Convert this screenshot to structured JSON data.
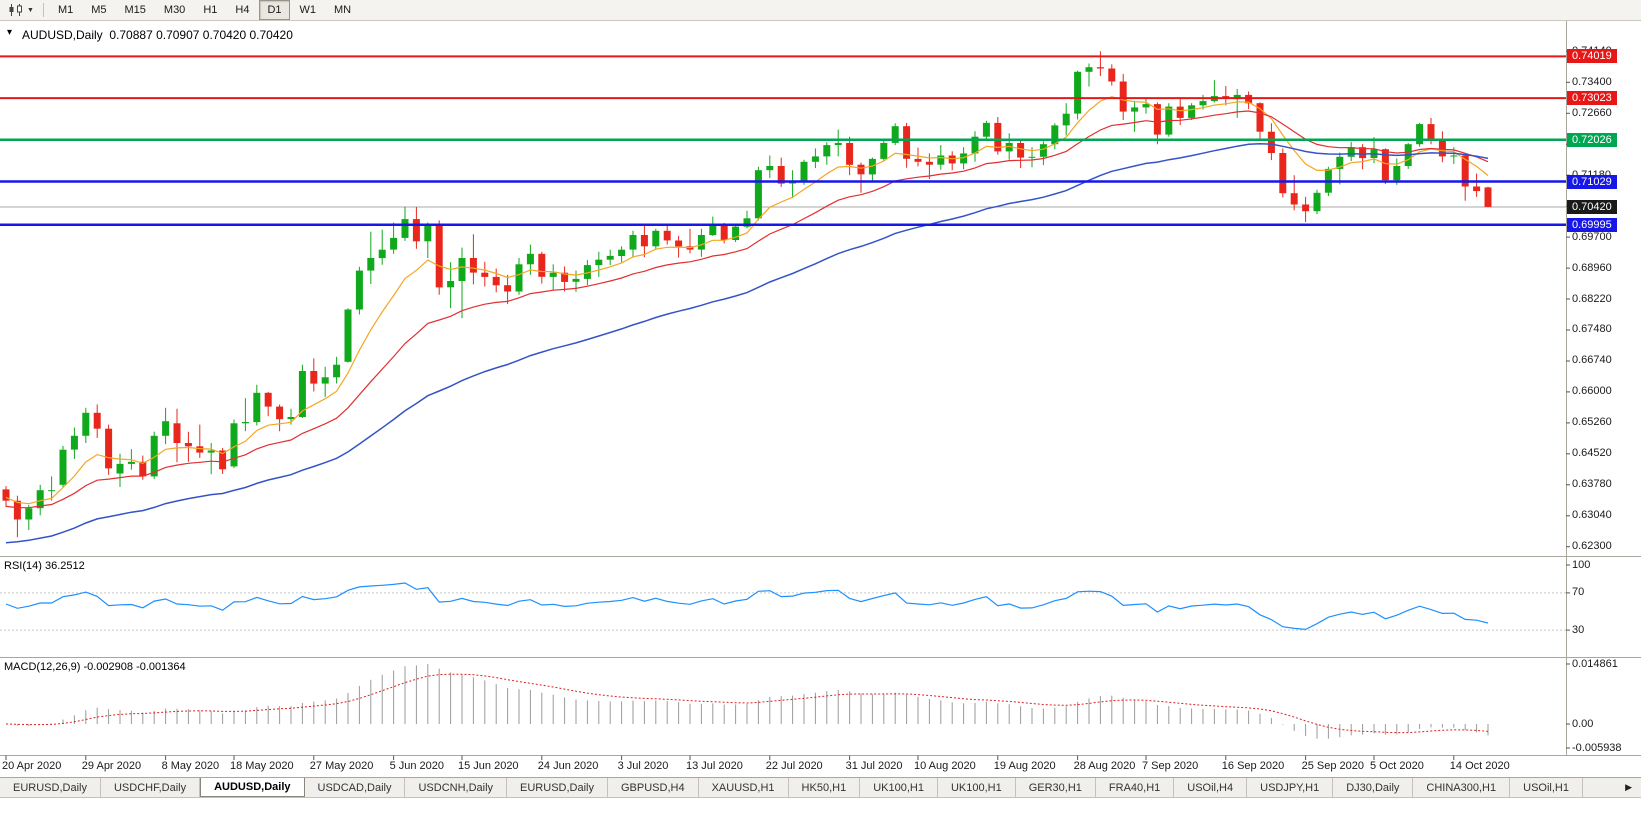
{
  "icons": {
    "caret_down": "▼",
    "one_click": "▾",
    "tab_scroll_right": "▶"
  },
  "toolbar": {
    "timeframes": [
      "M1",
      "M5",
      "M15",
      "M30",
      "H1",
      "H4",
      "D1",
      "W1",
      "MN"
    ],
    "active_timeframe": "D1"
  },
  "panes": {
    "main_title": "AUDUSD,Daily",
    "main_ohlc": "0.70887 0.70907 0.70420 0.70420",
    "rsi_label": "RSI(14) 36.2512",
    "macd_label": "MACD(12,26,9) -0.002908 -0.001364"
  },
  "chart": {
    "symbol": "AUDUSD",
    "period": "Daily",
    "open": "0.70887",
    "high": "0.70907",
    "low": "0.70420",
    "close": "0.70420",
    "current_price": "0.70420"
  },
  "tabs": {
    "active_index": 2,
    "items": [
      "EURUSD,Daily",
      "USDCHF,Daily",
      "AUDUSD,Daily",
      "USDCAD,Daily",
      "USDCNH,Daily",
      "EURUSD,Daily",
      "GBPUSD,H4",
      "XAUUSD,H1",
      "HK50,H1",
      "UK100,H1",
      "UK100,H1",
      "GER30,H1",
      "FRA40,H1",
      "USOil,H4",
      "USDJPY,H1",
      "DJ30,Daily",
      "CHINA300,H1",
      "USOil,H1"
    ]
  },
  "chart_data": {
    "type": "candlestick",
    "symbol": "AUDUSD",
    "timeframe": "Daily",
    "last_bar": {
      "open": 0.70887,
      "high": 0.70907,
      "low": 0.7042,
      "close": 0.7042
    },
    "bid_price": 0.7042,
    "y_axis": {
      "min": 0.6215,
      "max": 0.7465,
      "ticks": [
        "0.74140",
        "0.73400",
        "0.72660",
        "0.71920",
        "0.71180",
        "0.70440",
        "0.69700",
        "0.68960",
        "0.68220",
        "0.67480",
        "0.66740",
        "0.66000",
        "0.65260",
        "0.64520",
        "0.63780",
        "0.63040",
        "0.62300"
      ]
    },
    "x_labels": [
      {
        "index": 0,
        "label": "20 Apr 2020"
      },
      {
        "index": 7,
        "label": "29 Apr 2020"
      },
      {
        "index": 14,
        "label": "8 May 2020"
      },
      {
        "index": 20,
        "label": "18 May 2020"
      },
      {
        "index": 27,
        "label": "27 May 2020"
      },
      {
        "index": 34,
        "label": "5 Jun 2020"
      },
      {
        "index": 40,
        "label": "15 Jun 2020"
      },
      {
        "index": 47,
        "label": "24 Jun 2020"
      },
      {
        "index": 54,
        "label": "3 Jul 2020"
      },
      {
        "index": 60,
        "label": "13 Jul 2020"
      },
      {
        "index": 67,
        "label": "22 Jul 2020"
      },
      {
        "index": 74,
        "label": "31 Jul 2020"
      },
      {
        "index": 80,
        "label": "10 Aug 2020"
      },
      {
        "index": 87,
        "label": "19 Aug 2020"
      },
      {
        "index": 94,
        "label": "28 Aug 2020"
      },
      {
        "index": 100,
        "label": "7 Sep 2020"
      },
      {
        "index": 107,
        "label": "16 Sep 2020"
      },
      {
        "index": 114,
        "label": "25 Sep 2020"
      },
      {
        "index": 120,
        "label": "5 Oct 2020"
      },
      {
        "index": 127,
        "label": "14 Oct 2020"
      }
    ],
    "colors": {
      "candle_up": "#10a91c",
      "candle_down": "#e8261c",
      "bid_line": "#a8a8a8",
      "current_tag": "#1a1a1a",
      "divider": "#aaa69e",
      "axis_line": "#aaa69e",
      "tick": "#555555",
      "level_line": "#c8c8c8"
    },
    "overlays": [
      {
        "name": "ma-fast-line",
        "type": "ema",
        "period": 8,
        "seed": 0.635,
        "color": "#f5a623",
        "width": 1.2
      },
      {
        "name": "ma-medium-line",
        "type": "ema",
        "period": 20,
        "seed": 0.6325,
        "color": "#e03030",
        "width": 1.2
      },
      {
        "name": "ma-slow-line",
        "type": "ema",
        "period": 45,
        "seed": 0.6235,
        "color": "#3453c8",
        "width": 1.5
      }
    ],
    "hlines": [
      {
        "label": "0.74019",
        "price": 0.74019,
        "color": "#e81717",
        "width": 2
      },
      {
        "label": "0.73023",
        "price": 0.73023,
        "color": "#e81717",
        "width": 2
      },
      {
        "label": "0.72026",
        "price": 0.72026,
        "color": "#00a651",
        "width": 2.5
      },
      {
        "label": "0.71029",
        "price": 0.71029,
        "color": "#1717e8",
        "width": 2.5
      },
      {
        "label": "0.69995",
        "price": 0.69995,
        "color": "#1717e8",
        "width": 2.5
      }
    ],
    "candles": [
      [
        0.6367,
        0.6375,
        0.6325,
        0.634
      ],
      [
        0.634,
        0.6352,
        0.6253,
        0.6295
      ],
      [
        0.6295,
        0.633,
        0.627,
        0.6322
      ],
      [
        0.6322,
        0.6378,
        0.6305,
        0.6365
      ],
      [
        0.6365,
        0.6398,
        0.634,
        0.6365
      ],
      [
        0.6378,
        0.6471,
        0.6372,
        0.6462
      ],
      [
        0.6462,
        0.6515,
        0.644,
        0.6495
      ],
      [
        0.6495,
        0.6562,
        0.6478,
        0.655
      ],
      [
        0.655,
        0.657,
        0.649,
        0.6512
      ],
      [
        0.6512,
        0.6522,
        0.6402,
        0.6417
      ],
      [
        0.6405,
        0.6452,
        0.6373,
        0.6428
      ],
      [
        0.6428,
        0.6463,
        0.6414,
        0.6433
      ],
      [
        0.6433,
        0.6448,
        0.639,
        0.6398
      ],
      [
        0.6398,
        0.6505,
        0.6392,
        0.6495
      ],
      [
        0.6495,
        0.6562,
        0.6475,
        0.653
      ],
      [
        0.6525,
        0.656,
        0.6432,
        0.6478
      ],
      [
        0.6478,
        0.6505,
        0.6433,
        0.647
      ],
      [
        0.647,
        0.6522,
        0.6442,
        0.6455
      ],
      [
        0.6455,
        0.6478,
        0.6403,
        0.646
      ],
      [
        0.646,
        0.6466,
        0.6404,
        0.6415
      ],
      [
        0.6422,
        0.6534,
        0.6418,
        0.6525
      ],
      [
        0.6525,
        0.6585,
        0.6506,
        0.6528
      ],
      [
        0.6528,
        0.6617,
        0.652,
        0.6598
      ],
      [
        0.6598,
        0.66,
        0.6542,
        0.6565
      ],
      [
        0.6565,
        0.657,
        0.6506,
        0.6535
      ],
      [
        0.6535,
        0.656,
        0.6522,
        0.654
      ],
      [
        0.654,
        0.6665,
        0.6538,
        0.665
      ],
      [
        0.665,
        0.668,
        0.6601,
        0.662
      ],
      [
        0.662,
        0.666,
        0.6588,
        0.6635
      ],
      [
        0.6635,
        0.6684,
        0.662,
        0.6665
      ],
      [
        0.6672,
        0.68,
        0.667,
        0.6797
      ],
      [
        0.6797,
        0.6899,
        0.6785,
        0.689
      ],
      [
        0.689,
        0.6983,
        0.6858,
        0.692
      ],
      [
        0.692,
        0.6988,
        0.6904,
        0.694
      ],
      [
        0.694,
        0.7005,
        0.693,
        0.6968
      ],
      [
        0.6968,
        0.7043,
        0.6961,
        0.7013
      ],
      [
        0.7013,
        0.7042,
        0.6942,
        0.696
      ],
      [
        0.696,
        0.7005,
        0.692,
        0.7
      ],
      [
        0.7,
        0.701,
        0.6832,
        0.685
      ],
      [
        0.685,
        0.691,
        0.68,
        0.6865
      ],
      [
        0.6865,
        0.6945,
        0.6776,
        0.692
      ],
      [
        0.692,
        0.6977,
        0.6857,
        0.6885
      ],
      [
        0.6885,
        0.6911,
        0.6852,
        0.6875
      ],
      [
        0.6875,
        0.6895,
        0.6838,
        0.6855
      ],
      [
        0.6855,
        0.688,
        0.681,
        0.684
      ],
      [
        0.684,
        0.692,
        0.6832,
        0.6905
      ],
      [
        0.6905,
        0.6952,
        0.688,
        0.693
      ],
      [
        0.693,
        0.6935,
        0.6859,
        0.6875
      ],
      [
        0.6875,
        0.6905,
        0.6842,
        0.6885
      ],
      [
        0.6885,
        0.69,
        0.684,
        0.6863
      ],
      [
        0.6863,
        0.689,
        0.6839,
        0.687
      ],
      [
        0.687,
        0.6915,
        0.6855,
        0.6903
      ],
      [
        0.6903,
        0.6935,
        0.6875,
        0.6916
      ],
      [
        0.6916,
        0.694,
        0.6903,
        0.6925
      ],
      [
        0.6925,
        0.6948,
        0.691,
        0.694
      ],
      [
        0.694,
        0.6985,
        0.6921,
        0.6975
      ],
      [
        0.6975,
        0.6998,
        0.6922,
        0.6948
      ],
      [
        0.6948,
        0.699,
        0.694,
        0.6985
      ],
      [
        0.6985,
        0.7001,
        0.6952,
        0.6962
      ],
      [
        0.6962,
        0.6973,
        0.6921,
        0.6948
      ],
      [
        0.6948,
        0.699,
        0.6931,
        0.694
      ],
      [
        0.694,
        0.699,
        0.6923,
        0.6975
      ],
      [
        0.6975,
        0.7019,
        0.6973,
        0.7
      ],
      [
        0.7,
        0.7004,
        0.6955,
        0.6963
      ],
      [
        0.6963,
        0.7,
        0.6958,
        0.6995
      ],
      [
        0.6995,
        0.7033,
        0.6991,
        0.7015
      ],
      [
        0.7015,
        0.7138,
        0.701,
        0.713
      ],
      [
        0.713,
        0.7165,
        0.7111,
        0.714
      ],
      [
        0.714,
        0.716,
        0.709,
        0.7098
      ],
      [
        0.7098,
        0.713,
        0.7063,
        0.7105
      ],
      [
        0.7105,
        0.7155,
        0.7095,
        0.715
      ],
      [
        0.715,
        0.7182,
        0.7135,
        0.7163
      ],
      [
        0.7163,
        0.7197,
        0.7143,
        0.719
      ],
      [
        0.719,
        0.7227,
        0.7163,
        0.7195
      ],
      [
        0.7195,
        0.721,
        0.7118,
        0.7143
      ],
      [
        0.7143,
        0.7148,
        0.7076,
        0.712
      ],
      [
        0.712,
        0.716,
        0.7102,
        0.7157
      ],
      [
        0.7157,
        0.72,
        0.7152,
        0.7195
      ],
      [
        0.7195,
        0.7242,
        0.719,
        0.7235
      ],
      [
        0.7235,
        0.7243,
        0.7136,
        0.7157
      ],
      [
        0.7157,
        0.7184,
        0.7139,
        0.715
      ],
      [
        0.715,
        0.717,
        0.7109,
        0.7143
      ],
      [
        0.7143,
        0.719,
        0.7131,
        0.7165
      ],
      [
        0.7165,
        0.7175,
        0.713,
        0.7146
      ],
      [
        0.7146,
        0.7185,
        0.7132,
        0.717
      ],
      [
        0.717,
        0.7223,
        0.715,
        0.721
      ],
      [
        0.721,
        0.7248,
        0.72,
        0.7243
      ],
      [
        0.7243,
        0.7257,
        0.7167,
        0.7175
      ],
      [
        0.7175,
        0.7218,
        0.7155,
        0.7195
      ],
      [
        0.7195,
        0.72,
        0.7135,
        0.716
      ],
      [
        0.716,
        0.7185,
        0.7137,
        0.7162
      ],
      [
        0.7162,
        0.7199,
        0.7142,
        0.7192
      ],
      [
        0.7192,
        0.7242,
        0.718,
        0.7237
      ],
      [
        0.7237,
        0.729,
        0.7213,
        0.7265
      ],
      [
        0.7265,
        0.7368,
        0.7251,
        0.7365
      ],
      [
        0.7365,
        0.7385,
        0.733,
        0.7376
      ],
      [
        0.7376,
        0.7414,
        0.7355,
        0.7373
      ],
      [
        0.7373,
        0.7383,
        0.7332,
        0.7342
      ],
      [
        0.7342,
        0.736,
        0.725,
        0.727
      ],
      [
        0.727,
        0.7296,
        0.7222,
        0.728
      ],
      [
        0.728,
        0.73,
        0.7265,
        0.7288
      ],
      [
        0.7288,
        0.7292,
        0.7192,
        0.7215
      ],
      [
        0.7215,
        0.729,
        0.721,
        0.7282
      ],
      [
        0.7282,
        0.73,
        0.7238,
        0.7255
      ],
      [
        0.7255,
        0.729,
        0.725,
        0.7285
      ],
      [
        0.7285,
        0.731,
        0.7275,
        0.7295
      ],
      [
        0.7295,
        0.7345,
        0.7292,
        0.7307
      ],
      [
        0.7307,
        0.7331,
        0.7285,
        0.73
      ],
      [
        0.73,
        0.7324,
        0.7255,
        0.731
      ],
      [
        0.731,
        0.7318,
        0.7276,
        0.729
      ],
      [
        0.729,
        0.7292,
        0.72,
        0.7222
      ],
      [
        0.7222,
        0.7242,
        0.7154,
        0.7171
      ],
      [
        0.7171,
        0.7182,
        0.7065,
        0.7075
      ],
      [
        0.7075,
        0.7118,
        0.7034,
        0.7048
      ],
      [
        0.7048,
        0.7066,
        0.7006,
        0.7032
      ],
      [
        0.7032,
        0.7083,
        0.7025,
        0.7076
      ],
      [
        0.7076,
        0.7138,
        0.7068,
        0.7133
      ],
      [
        0.7133,
        0.7172,
        0.7096,
        0.7162
      ],
      [
        0.7162,
        0.7198,
        0.7152,
        0.7185
      ],
      [
        0.7185,
        0.7192,
        0.7132,
        0.7159
      ],
      [
        0.7159,
        0.7209,
        0.7147,
        0.718
      ],
      [
        0.718,
        0.7182,
        0.7097,
        0.7106
      ],
      [
        0.7106,
        0.7158,
        0.7095,
        0.714
      ],
      [
        0.714,
        0.7195,
        0.7133,
        0.7192
      ],
      [
        0.7192,
        0.7243,
        0.7186,
        0.724
      ],
      [
        0.724,
        0.7255,
        0.7192,
        0.7205
      ],
      [
        0.7205,
        0.7223,
        0.7149,
        0.7163
      ],
      [
        0.7163,
        0.7185,
        0.7145,
        0.7165
      ],
      [
        0.7165,
        0.717,
        0.7057,
        0.7091
      ],
      [
        0.7091,
        0.7122,
        0.7066,
        0.708
      ],
      [
        0.70887,
        0.70907,
        0.7042,
        0.7042
      ]
    ],
    "indicators": {
      "rsi": {
        "period": 14,
        "current": 36.2512,
        "color": "#1e90ff",
        "levels": [
          "100",
          "70",
          "30"
        ],
        "seed_gain": 0.00235,
        "seed_loss": 0.0017
      },
      "macd": {
        "fast": 12,
        "slow": 26,
        "signal": 9,
        "current_macd": -0.002908,
        "current_signal": -0.001364,
        "axis_max": 0.014861,
        "axis_min": -0.005938,
        "axis_labels": [
          "0.014861",
          "0.00",
          "-0.005938"
        ],
        "signal_color": "#e02020",
        "histogram_color": "#9a9a9a"
      }
    }
  }
}
